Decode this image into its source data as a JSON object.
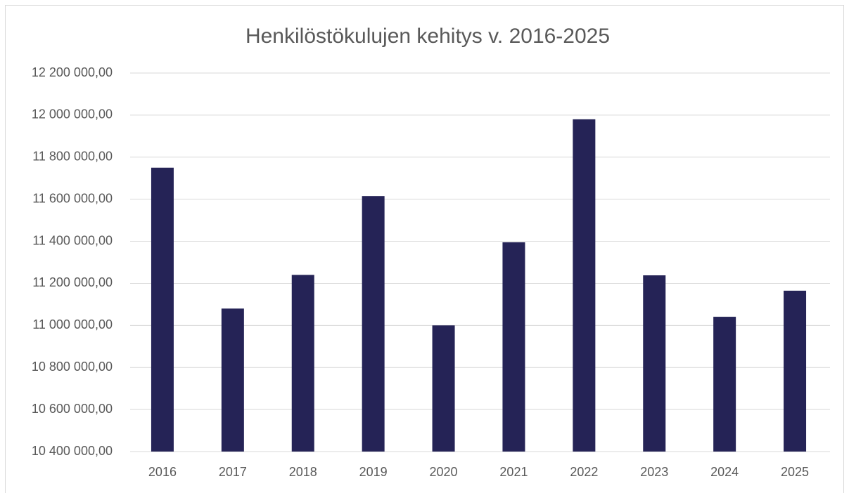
{
  "chart_data": {
    "type": "bar",
    "title": "Henkilöstökulujen kehitys v. 2016-2025",
    "categories": [
      "2016",
      "2017",
      "2018",
      "2019",
      "2020",
      "2021",
      "2022",
      "2023",
      "2024",
      "2025"
    ],
    "values": [
      11750000,
      11080000,
      11240000,
      11615000,
      11000000,
      11395000,
      11980000,
      11238000,
      11041000,
      11165000
    ],
    "color": "#252356",
    "ylim": [
      10400000,
      12200000
    ],
    "yticks": [
      {
        "value": 10400000,
        "label": "10 400 000,00"
      },
      {
        "value": 10600000,
        "label": "10 600 000,00"
      },
      {
        "value": 10800000,
        "label": "10 800 000,00"
      },
      {
        "value": 11000000,
        "label": "11 000 000,00"
      },
      {
        "value": 11200000,
        "label": "11 200 000,00"
      },
      {
        "value": 11400000,
        "label": "11 400 000,00"
      },
      {
        "value": 11600000,
        "label": "11 600 000,00"
      },
      {
        "value": 11800000,
        "label": "11 800 000,00"
      },
      {
        "value": 12000000,
        "label": "12 000 000,00"
      },
      {
        "value": 12200000,
        "label": "12 200 000,00"
      }
    ],
    "grid": true
  }
}
